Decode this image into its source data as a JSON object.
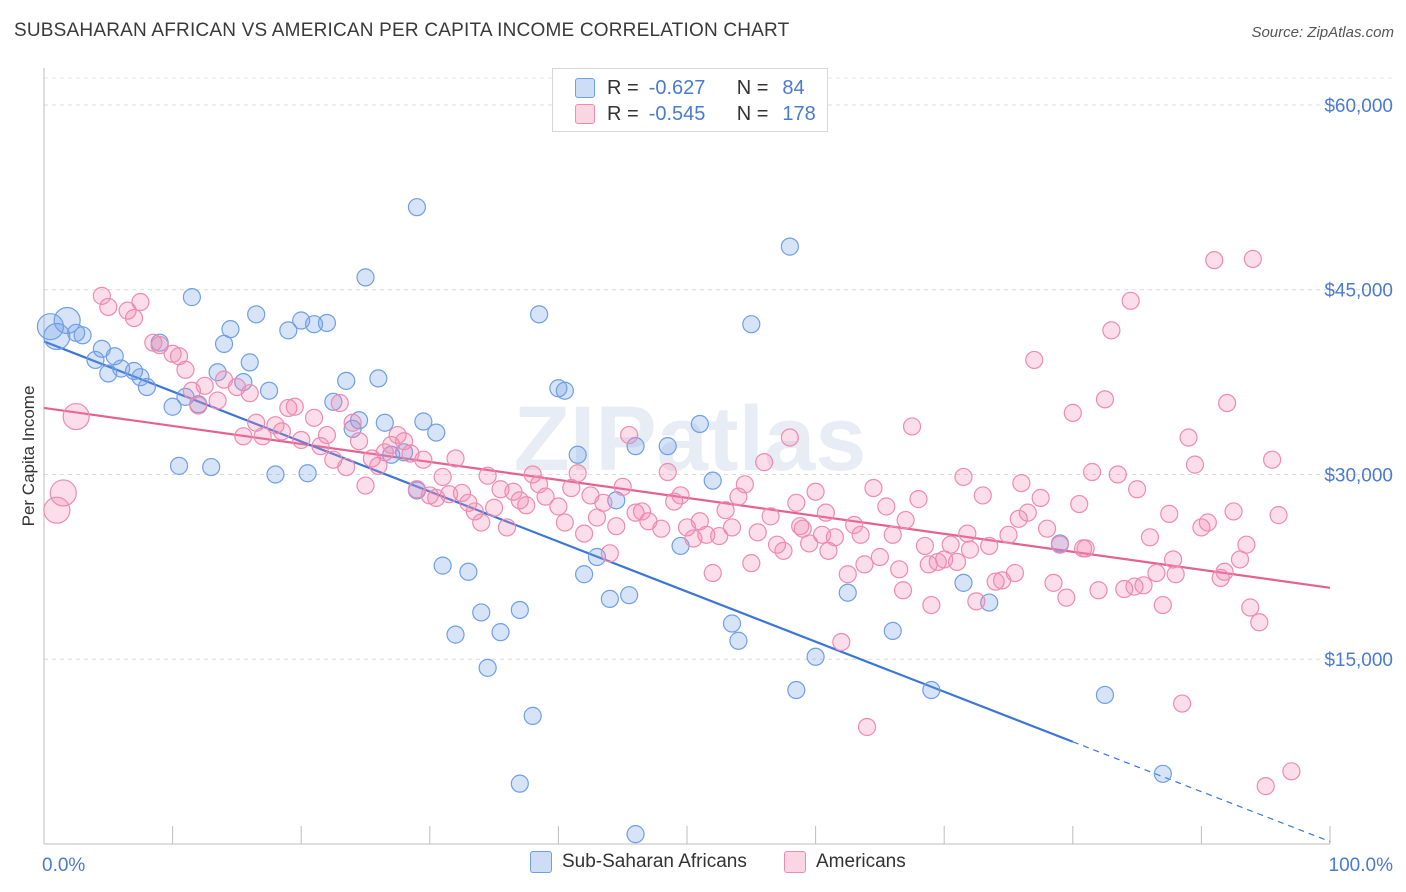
{
  "title": "SUBSAHARAN AFRICAN VS AMERICAN PER CAPITA INCOME CORRELATION CHART",
  "source": "Source: ZipAtlas.com",
  "watermark": "ZIPatlas",
  "legend": {
    "rows": [
      {
        "r_label": "R =",
        "r_value": "-0.627",
        "n_label": "N =",
        "n_value": "84",
        "color": "#6f9fe6"
      },
      {
        "r_label": "R =",
        "r_value": "-0.545",
        "n_label": "N =",
        "n_value": "178",
        "color": "#f08ab0"
      }
    ]
  },
  "bottom_legend": [
    {
      "label": "Sub-Saharan Africans",
      "color": "#6f9fe6"
    },
    {
      "label": "Americans",
      "color": "#f08ab0"
    }
  ],
  "chart_data": {
    "type": "scatter",
    "title": "SUBSAHARAN AFRICAN VS AMERICAN PER CAPITA INCOME CORRELATION CHART",
    "xlabel": "",
    "ylabel": "Per Capita Income",
    "xlim": [
      0,
      100
    ],
    "ylim": [
      0,
      63000
    ],
    "x_tick_labels": [
      "0.0%",
      "100.0%"
    ],
    "y_ticks": [
      {
        "value": 15000,
        "label": "$15,000"
      },
      {
        "value": 30000,
        "label": "$30,000"
      },
      {
        "value": 45000,
        "label": "$45,000"
      },
      {
        "value": 60000,
        "label": "$60,000"
      }
    ],
    "grid": true,
    "series": [
      {
        "name": "Sub-Saharan Africans",
        "color": "#6f9fe6",
        "trend": {
          "x0": 0,
          "y0": 40800,
          "x1": 80,
          "y1": 8300,
          "dash_to_x": 100,
          "dash_to_y": 200
        },
        "points": [
          [
            0.5,
            42000
          ],
          [
            1.0,
            41200
          ],
          [
            1.8,
            42500
          ],
          [
            2.5,
            41500
          ],
          [
            4.0,
            39300
          ],
          [
            4.5,
            40200
          ],
          [
            5.5,
            39600
          ],
          [
            6.0,
            38600
          ],
          [
            7.0,
            38400
          ],
          [
            7.5,
            37900
          ],
          [
            9.0,
            40700
          ],
          [
            10.0,
            35500
          ],
          [
            11.5,
            44400
          ],
          [
            11.0,
            36300
          ],
          [
            12.0,
            35700
          ],
          [
            13.5,
            38300
          ],
          [
            14.0,
            40600
          ],
          [
            14.5,
            41800
          ],
          [
            15.5,
            37500
          ],
          [
            16.0,
            39100
          ],
          [
            16.5,
            43000
          ],
          [
            17.5,
            36800
          ],
          [
            19.0,
            41700
          ],
          [
            20.0,
            42500
          ],
          [
            21.0,
            42200
          ],
          [
            22.0,
            42300
          ],
          [
            22.5,
            35900
          ],
          [
            23.5,
            37600
          ],
          [
            24.0,
            33700
          ],
          [
            24.5,
            34400
          ],
          [
            25.0,
            46000
          ],
          [
            26.0,
            37800
          ],
          [
            27.0,
            31600
          ],
          [
            28.0,
            31800
          ],
          [
            29.0,
            28700
          ],
          [
            29.5,
            34300
          ],
          [
            29.0,
            51700
          ],
          [
            31.0,
            22600
          ],
          [
            32.0,
            17000
          ],
          [
            33.0,
            22100
          ],
          [
            34.0,
            18800
          ],
          [
            34.5,
            14300
          ],
          [
            35.5,
            17200
          ],
          [
            37.0,
            19000
          ],
          [
            38.0,
            10400
          ],
          [
            38.5,
            43000
          ],
          [
            40.0,
            37000
          ],
          [
            40.5,
            36800
          ],
          [
            41.5,
            31600
          ],
          [
            42.0,
            21900
          ],
          [
            43.0,
            23300
          ],
          [
            44.0,
            19900
          ],
          [
            45.5,
            20200
          ],
          [
            46.0,
            32300
          ],
          [
            48.5,
            32300
          ],
          [
            49.5,
            24200
          ],
          [
            51.0,
            34100
          ],
          [
            52.0,
            29500
          ],
          [
            53.5,
            17900
          ],
          [
            54.0,
            16500
          ],
          [
            55.0,
            42200
          ],
          [
            58.0,
            48500
          ],
          [
            60.0,
            15200
          ],
          [
            58.5,
            12500
          ],
          [
            62.5,
            20400
          ],
          [
            66.0,
            17300
          ],
          [
            69.0,
            12500
          ],
          [
            71.5,
            21200
          ],
          [
            73.5,
            19600
          ],
          [
            79.0,
            24400
          ],
          [
            82.5,
            12100
          ],
          [
            87.0,
            5700
          ],
          [
            37.0,
            4900
          ],
          [
            46.0,
            800
          ],
          [
            3.0,
            41300
          ],
          [
            5.0,
            38200
          ],
          [
            8.0,
            37100
          ],
          [
            13.0,
            30600
          ],
          [
            10.5,
            30700
          ],
          [
            18.0,
            30000
          ],
          [
            20.5,
            30100
          ],
          [
            26.5,
            34200
          ],
          [
            30.5,
            33400
          ],
          [
            44.5,
            27900
          ]
        ]
      },
      {
        "name": "Americans",
        "color": "#f08ab0",
        "trend": {
          "x0": 0,
          "y0": 35400,
          "x1": 100,
          "y1": 20800
        },
        "points": [
          [
            1.0,
            27100
          ],
          [
            1.5,
            28500
          ],
          [
            2.5,
            34700
          ],
          [
            4.5,
            44500
          ],
          [
            5.0,
            43600
          ],
          [
            6.5,
            43300
          ],
          [
            7.0,
            42700
          ],
          [
            7.5,
            44000
          ],
          [
            8.5,
            40700
          ],
          [
            9.0,
            40500
          ],
          [
            10.0,
            39800
          ],
          [
            11.0,
            38500
          ],
          [
            11.5,
            36800
          ],
          [
            12.5,
            37200
          ],
          [
            13.5,
            36000
          ],
          [
            14.0,
            37700
          ],
          [
            15.0,
            37100
          ],
          [
            16.0,
            36600
          ],
          [
            16.5,
            34200
          ],
          [
            17.0,
            33100
          ],
          [
            18.0,
            34000
          ],
          [
            18.5,
            33500
          ],
          [
            19.5,
            35500
          ],
          [
            20.0,
            32800
          ],
          [
            21.0,
            34600
          ],
          [
            22.0,
            33200
          ],
          [
            22.5,
            31200
          ],
          [
            23.0,
            35800
          ],
          [
            24.0,
            34200
          ],
          [
            24.5,
            32700
          ],
          [
            25.0,
            29100
          ],
          [
            25.5,
            31300
          ],
          [
            26.0,
            30700
          ],
          [
            27.0,
            32400
          ],
          [
            27.5,
            33200
          ],
          [
            28.0,
            32700
          ],
          [
            28.5,
            31700
          ],
          [
            29.0,
            28800
          ],
          [
            29.5,
            31200
          ],
          [
            30.0,
            28300
          ],
          [
            30.5,
            28100
          ],
          [
            31.0,
            29800
          ],
          [
            32.0,
            31300
          ],
          [
            32.5,
            28500
          ],
          [
            33.0,
            27700
          ],
          [
            33.5,
            27000
          ],
          [
            34.0,
            26100
          ],
          [
            34.5,
            29900
          ],
          [
            35.0,
            27300
          ],
          [
            35.5,
            28800
          ],
          [
            36.0,
            25700
          ],
          [
            36.5,
            28600
          ],
          [
            37.0,
            27900
          ],
          [
            38.0,
            30000
          ],
          [
            38.5,
            29200
          ],
          [
            39.0,
            28200
          ],
          [
            40.0,
            27400
          ],
          [
            40.5,
            26100
          ],
          [
            41.0,
            28900
          ],
          [
            42.0,
            25200
          ],
          [
            42.5,
            28300
          ],
          [
            43.0,
            26500
          ],
          [
            43.5,
            27700
          ],
          [
            44.0,
            23600
          ],
          [
            44.5,
            25800
          ],
          [
            45.0,
            29000
          ],
          [
            45.5,
            33200
          ],
          [
            46.5,
            27000
          ],
          [
            47.0,
            26200
          ],
          [
            48.0,
            25600
          ],
          [
            48.5,
            30200
          ],
          [
            49.0,
            27800
          ],
          [
            50.0,
            25700
          ],
          [
            50.5,
            24800
          ],
          [
            51.0,
            26200
          ],
          [
            51.5,
            25100
          ],
          [
            52.0,
            22000
          ],
          [
            53.0,
            27100
          ],
          [
            53.5,
            25700
          ],
          [
            54.0,
            28200
          ],
          [
            54.5,
            29200
          ],
          [
            55.5,
            25300
          ],
          [
            56.0,
            31000
          ],
          [
            56.5,
            26600
          ],
          [
            57.0,
            24300
          ],
          [
            57.5,
            23800
          ],
          [
            58.0,
            33000
          ],
          [
            58.5,
            27700
          ],
          [
            59.0,
            25600
          ],
          [
            59.5,
            24400
          ],
          [
            60.0,
            28600
          ],
          [
            60.5,
            25100
          ],
          [
            61.0,
            23800
          ],
          [
            61.5,
            24900
          ],
          [
            62.0,
            16400
          ],
          [
            62.5,
            21900
          ],
          [
            63.0,
            25900
          ],
          [
            63.5,
            25100
          ],
          [
            64.0,
            9500
          ],
          [
            64.5,
            28900
          ],
          [
            65.0,
            23300
          ],
          [
            65.5,
            27400
          ],
          [
            66.0,
            25100
          ],
          [
            66.5,
            22300
          ],
          [
            67.0,
            26300
          ],
          [
            67.5,
            33900
          ],
          [
            68.0,
            28000
          ],
          [
            68.5,
            24200
          ],
          [
            69.0,
            19400
          ],
          [
            69.5,
            22900
          ],
          [
            70.0,
            23100
          ],
          [
            70.5,
            24300
          ],
          [
            71.0,
            22900
          ],
          [
            71.5,
            29800
          ],
          [
            72.0,
            23900
          ],
          [
            72.5,
            19700
          ],
          [
            73.0,
            28300
          ],
          [
            73.5,
            24200
          ],
          [
            74.0,
            21300
          ],
          [
            74.5,
            21400
          ],
          [
            75.0,
            25100
          ],
          [
            75.5,
            22000
          ],
          [
            76.0,
            29300
          ],
          [
            76.5,
            26900
          ],
          [
            77.0,
            39300
          ],
          [
            77.5,
            28100
          ],
          [
            78.0,
            25600
          ],
          [
            78.5,
            21200
          ],
          [
            79.0,
            24300
          ],
          [
            79.5,
            20000
          ],
          [
            80.0,
            35000
          ],
          [
            80.5,
            27600
          ],
          [
            81.0,
            24000
          ],
          [
            81.5,
            30200
          ],
          [
            82.0,
            20600
          ],
          [
            82.5,
            36100
          ],
          [
            83.0,
            41700
          ],
          [
            83.5,
            30000
          ],
          [
            84.0,
            20700
          ],
          [
            84.5,
            44100
          ],
          [
            85.0,
            28800
          ],
          [
            85.5,
            21000
          ],
          [
            86.0,
            24900
          ],
          [
            86.5,
            22000
          ],
          [
            87.0,
            19400
          ],
          [
            87.5,
            26800
          ],
          [
            88.0,
            21900
          ],
          [
            88.5,
            11400
          ],
          [
            89.0,
            33000
          ],
          [
            89.5,
            30800
          ],
          [
            90.0,
            25700
          ],
          [
            90.5,
            26100
          ],
          [
            91.0,
            47400
          ],
          [
            91.5,
            21600
          ],
          [
            92.0,
            35800
          ],
          [
            92.5,
            27000
          ],
          [
            93.0,
            23100
          ],
          [
            93.5,
            24300
          ],
          [
            94.0,
            47500
          ],
          [
            94.5,
            18000
          ],
          [
            95.0,
            4700
          ],
          [
            95.5,
            31200
          ],
          [
            96.0,
            26700
          ],
          [
            97.0,
            5900
          ],
          [
            10.5,
            39600
          ],
          [
            12.0,
            35600
          ],
          [
            15.5,
            33100
          ],
          [
            19.0,
            35400
          ],
          [
            21.5,
            32300
          ],
          [
            23.5,
            30600
          ],
          [
            26.5,
            31800
          ],
          [
            31.5,
            28400
          ],
          [
            37.5,
            27500
          ],
          [
            41.5,
            30100
          ],
          [
            46.0,
            26900
          ],
          [
            49.5,
            28300
          ],
          [
            52.5,
            25000
          ],
          [
            55.0,
            22800
          ],
          [
            58.8,
            25800
          ],
          [
            60.8,
            26900
          ],
          [
            63.8,
            22700
          ],
          [
            66.8,
            20600
          ],
          [
            68.8,
            22700
          ],
          [
            71.8,
            25200
          ],
          [
            75.8,
            26400
          ],
          [
            80.8,
            24000
          ],
          [
            84.8,
            20900
          ],
          [
            87.8,
            23100
          ],
          [
            91.8,
            22100
          ],
          [
            93.8,
            19200
          ]
        ]
      }
    ]
  }
}
